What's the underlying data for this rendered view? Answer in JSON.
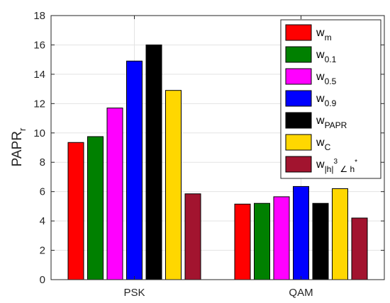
{
  "chart_data": {
    "type": "bar",
    "categories": [
      "PSK",
      "QAM"
    ],
    "series": [
      {
        "name": "w_m",
        "base": "w",
        "sub": "m",
        "sup": "",
        "color": "#ff0000",
        "values": [
          9.35,
          5.15
        ]
      },
      {
        "name": "w_0.1",
        "base": "w",
        "sub": "0.1",
        "sup": "",
        "color": "#008000",
        "values": [
          9.75,
          5.2
        ]
      },
      {
        "name": "w_0.5",
        "base": "w",
        "sub": "0.5",
        "sup": "",
        "color": "#ff00ff",
        "values": [
          11.7,
          5.65
        ]
      },
      {
        "name": "w_0.9",
        "base": "w",
        "sub": "0.9",
        "sup": "",
        "color": "#0000ff",
        "values": [
          14.9,
          6.35
        ]
      },
      {
        "name": "w_PAPR",
        "base": "w",
        "sub": "PAPR",
        "sup": "",
        "color": "#000000",
        "values": [
          16.0,
          5.2
        ]
      },
      {
        "name": "w_C",
        "base": "w",
        "sub": "C",
        "sup": "",
        "color": "#ffd700",
        "values": [
          12.9,
          6.2
        ]
      },
      {
        "name": "w_|h|^3 ∠ h^*",
        "base": "w",
        "sub": "|h|",
        "sup": "3",
        "sub2": "∠ h",
        "sup2": "*",
        "color": "#a2142f",
        "values": [
          5.85,
          4.2
        ]
      }
    ],
    "ylabel": "PAPR",
    "ylabel_sub": "r",
    "xlabel": "",
    "ylim": [
      0,
      18
    ],
    "yticks": [
      0,
      2,
      4,
      6,
      8,
      10,
      12,
      14,
      16,
      18
    ],
    "grid": true,
    "legend_position": "top-right"
  }
}
